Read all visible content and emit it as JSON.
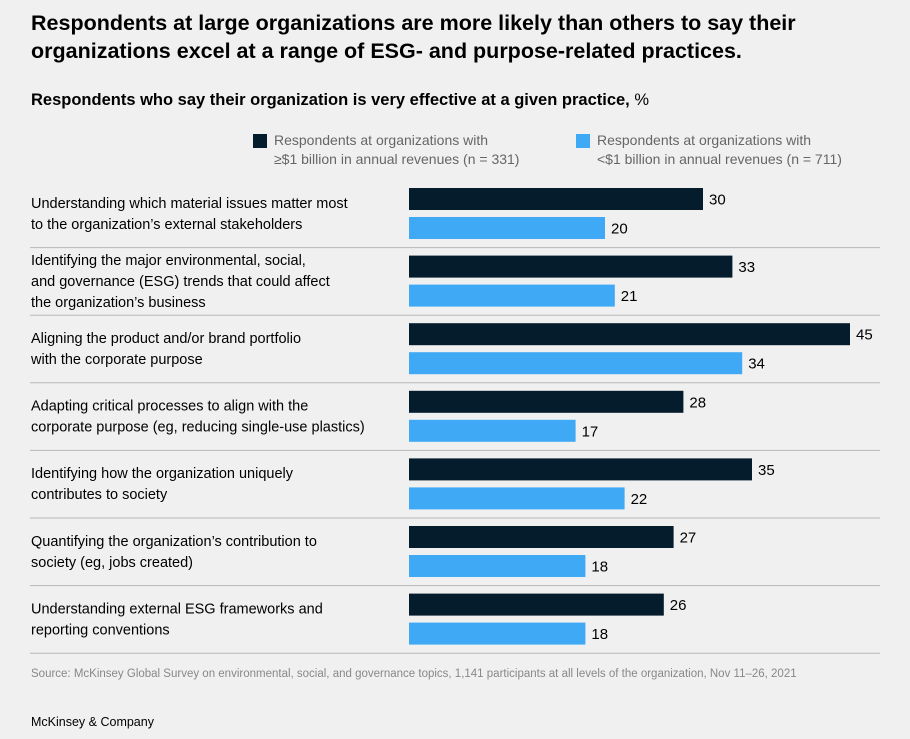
{
  "header": {
    "title": "Respondents at large organizations are more likely than others to say their organizations excel at a range of ESG- and purpose-related practices.",
    "subtitle_bold": "Respondents who say their organization is very effective at a given practice,",
    "subtitle_unit": "%"
  },
  "colors": {
    "large": "#051c2c",
    "small": "#3fa9f5",
    "divider": "#b8b8b8"
  },
  "chart_data": {
    "type": "bar",
    "orientation": "horizontal",
    "title": "Respondents who say their organization is very effective at a given practice, %",
    "xlim": [
      0,
      50
    ],
    "grid": false,
    "legend_position": "top",
    "categories": [
      "Understanding which material issues matter most\nto the organization’s external stakeholders",
      "Identifying the major environmental, social,\nand governance (ESG) trends that could affect\nthe organization’s business",
      "Aligning the product and/or brand portfolio\nwith the corporate purpose",
      "Adapting critical processes to align with the\ncorporate purpose (eg, reducing single-use plastics)",
      "Identifying how the organization uniquely\ncontributes to society",
      "Quantifying the organization’s contribution to\nsociety (eg, jobs created)",
      "Understanding external ESG frameworks and\nreporting conventions"
    ],
    "series": [
      {
        "name": "Respondents at organizations with\n≥$1 billion in annual revenues (n = 331)",
        "values": [
          30,
          33,
          45,
          28,
          35,
          27,
          26
        ]
      },
      {
        "name": "Respondents at organizations with\n<$1 billion in annual revenues (n = 711)",
        "values": [
          20,
          21,
          34,
          17,
          22,
          18,
          18
        ]
      }
    ]
  },
  "footer": {
    "source": "Source: McKinsey Global Survey on environmental, social, and governance topics, 1,141 participants at all levels of the organization, Nov 11–26, 2021",
    "brand": "McKinsey & Company"
  }
}
